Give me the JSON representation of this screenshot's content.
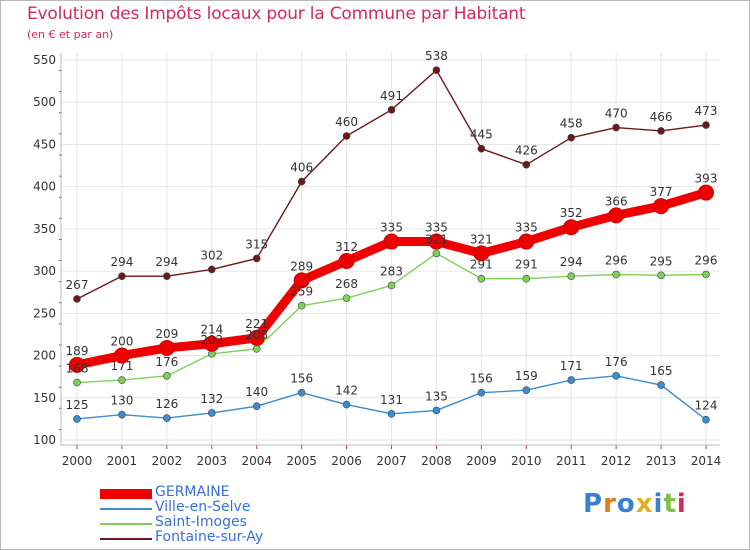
{
  "title": "Evolution des Impôts locaux pour la Commune par Habitant",
  "subtitle": "(en € et par an)",
  "logo": "Proxiti",
  "chart_data": {
    "type": "line",
    "categories": [
      "2000",
      "2001",
      "2002",
      "2003",
      "2004",
      "2005",
      "2006",
      "2007",
      "2008",
      "2009",
      "2010",
      "2011",
      "2012",
      "2013",
      "2014"
    ],
    "ylim": [
      100,
      550
    ],
    "yticks": [
      100,
      150,
      200,
      250,
      300,
      350,
      400,
      450,
      500,
      550
    ],
    "grid": true,
    "legend_position": "bottom-left",
    "series": [
      {
        "name": "GERMAINE",
        "color": "#ee0000",
        "values": [
          189,
          200,
          209,
          214,
          221,
          289,
          312,
          335,
          335,
          321,
          335,
          352,
          366,
          377,
          393
        ]
      },
      {
        "name": "Ville-en-Selve",
        "color": "#3d8ccd",
        "values": [
          125,
          130,
          126,
          132,
          140,
          156,
          142,
          131,
          135,
          156,
          159,
          171,
          176,
          165,
          124
        ]
      },
      {
        "name": "Saint-Imoges",
        "color": "#7fd05a",
        "values": [
          168,
          171,
          176,
          202,
          208,
          259,
          268,
          283,
          321,
          291,
          291,
          294,
          296,
          295,
          296
        ]
      },
      {
        "name": "Fontaine-sur-Ay",
        "color": "#6b1a1a",
        "values": [
          267,
          294,
          294,
          302,
          315,
          406,
          460,
          491,
          538,
          445,
          426,
          458,
          470,
          466,
          473
        ]
      }
    ]
  }
}
